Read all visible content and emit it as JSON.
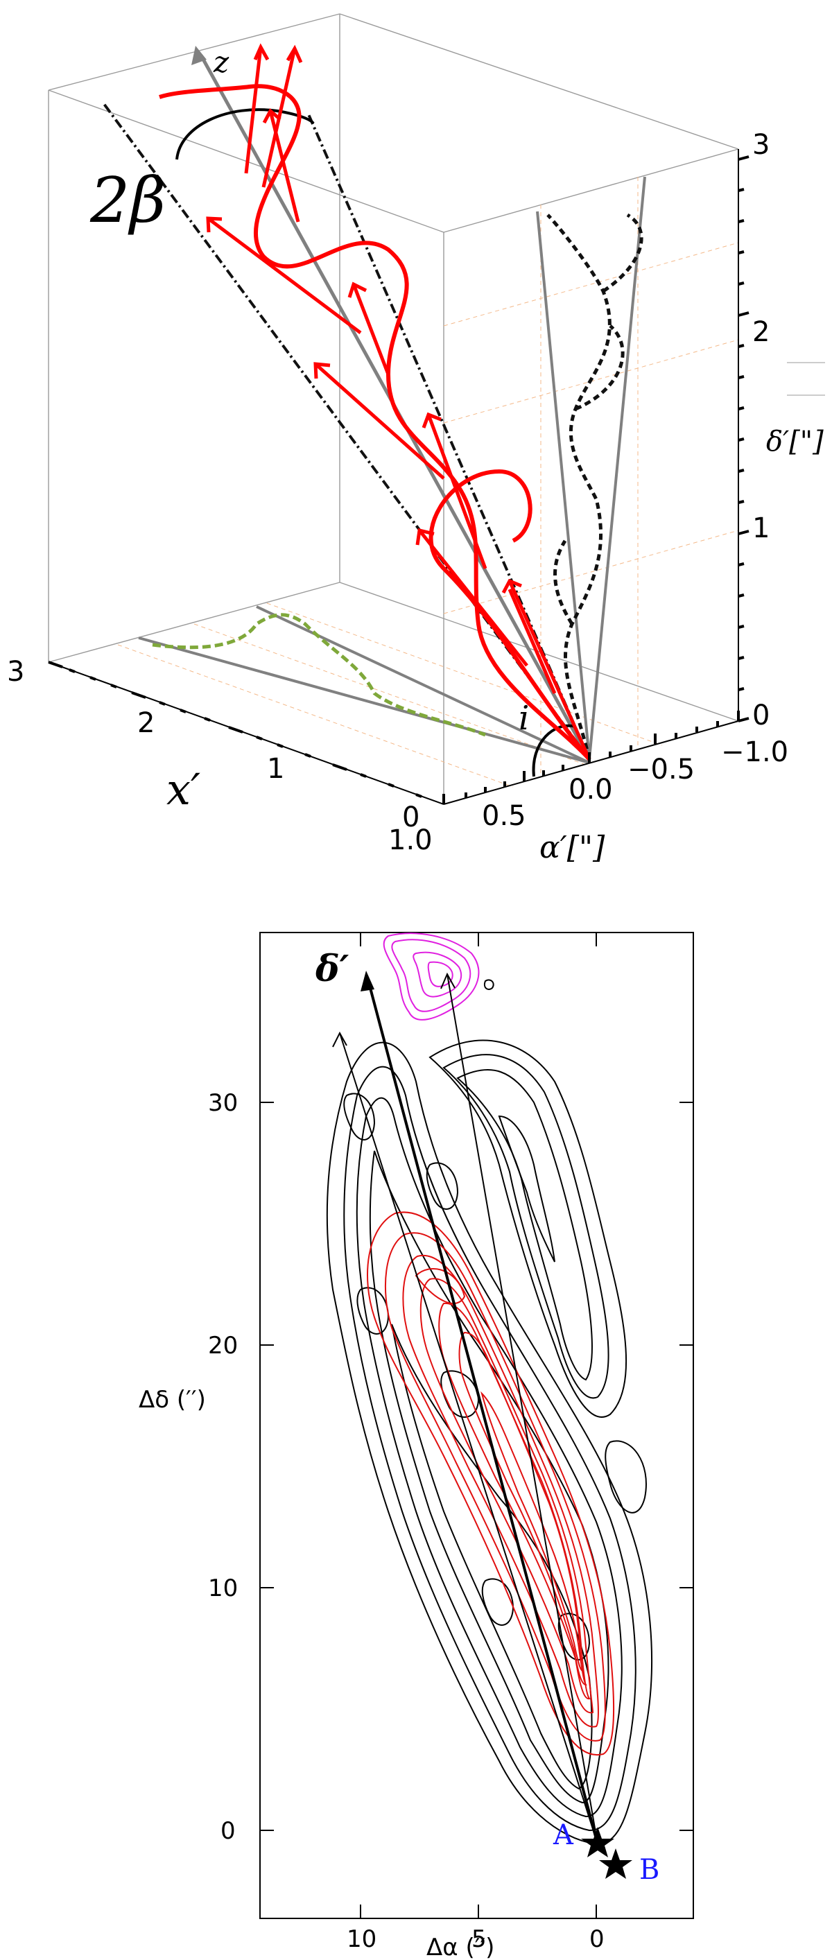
{
  "top_panel": {
    "z_axis_label": "z",
    "opening_angle_label": "2β",
    "inclination_label": "i",
    "x_axis_label": "x′",
    "alpha_axis_label": "α′[\"]",
    "delta_axis_label": "δ′[\"]",
    "x_ticks": [
      "3",
      "2",
      "1",
      "0"
    ],
    "alpha_ticks": [
      "1.0",
      "0.5",
      "0.0",
      "−0.5",
      "−1.0"
    ],
    "delta_ticks": [
      "3",
      "2",
      "1",
      "0"
    ],
    "colors": {
      "helix": "#ff0000",
      "axis": "#808080",
      "projection_ground": "#7fa83a",
      "grid": "#f4b98a"
    }
  },
  "bottom_panel": {
    "delta_prime_label": "δ′",
    "xlabel": "Δα  (′′)",
    "ylabel": "Δδ  (′′)",
    "source_a": "A",
    "source_b": "B",
    "x_ticks": [
      "10",
      "5",
      "0"
    ],
    "y_ticks": [
      "30",
      "20",
      "10",
      "0"
    ],
    "colors": {
      "contours_black": "#000000",
      "contours_red": "#e01010",
      "contours_magenta": "#e020e0",
      "labels": "#1a1aff"
    }
  },
  "chart_data": {
    "type": "scatter",
    "xlabel": "Δα  (′′)",
    "ylabel": "Δδ  (′′)",
    "xlim": [
      14,
      -4
    ],
    "ylim": [
      -3,
      38
    ],
    "series": [
      {
        "name": "A",
        "x": [
          0.15
        ],
        "y": [
          0.0
        ]
      },
      {
        "name": "B",
        "x": [
          -0.55
        ],
        "y": [
          -1.1
        ]
      }
    ]
  }
}
